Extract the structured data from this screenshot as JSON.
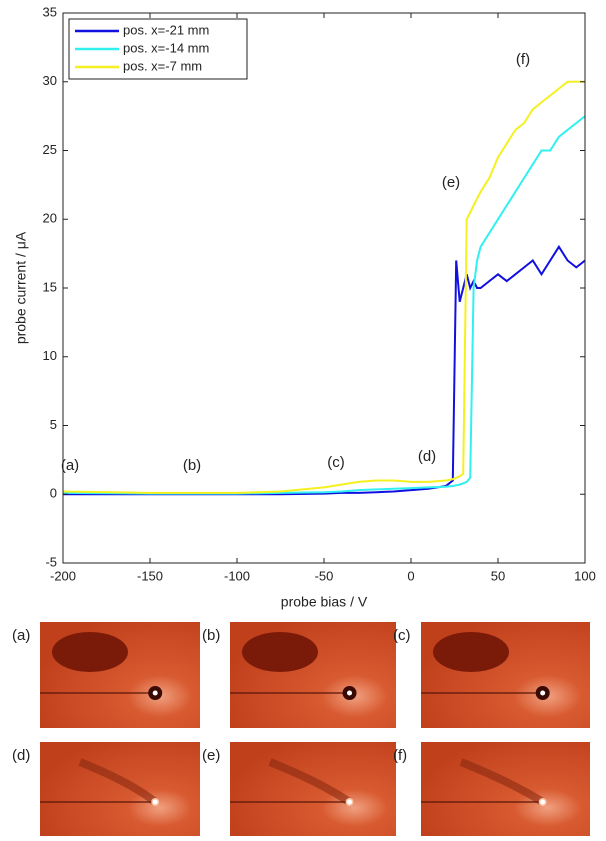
{
  "chart_data": {
    "type": "line",
    "xlabel": "probe bias / V",
    "ylabel": "probe current / μA",
    "x": [
      -200,
      -150,
      -100,
      -75,
      -50,
      -40,
      -30,
      -20,
      -10,
      0,
      10,
      20,
      24,
      26,
      28,
      30,
      32,
      34,
      36,
      38,
      40,
      45,
      50,
      55,
      60,
      65,
      70,
      75,
      80,
      85,
      90,
      95,
      100
    ],
    "series": [
      {
        "name": "pos. x=-21 mm",
        "color": "#1010e0",
        "values": [
          0,
          0,
          0,
          0,
          0.05,
          0.1,
          0.1,
          0.15,
          0.2,
          0.3,
          0.4,
          0.6,
          1,
          17,
          14,
          15,
          16,
          15,
          15.5,
          15,
          15,
          15.5,
          16,
          15.5,
          16,
          16.5,
          17,
          16,
          17,
          18,
          17,
          16.5,
          17
        ]
      },
      {
        "name": "pos. x=-14 mm",
        "color": "#30f0f0",
        "values": [
          0.1,
          0.05,
          0.05,
          0.1,
          0.15,
          0.2,
          0.3,
          0.35,
          0.4,
          0.45,
          0.5,
          0.55,
          0.6,
          0.65,
          0.7,
          0.8,
          0.9,
          1.2,
          15,
          17,
          18,
          19,
          20,
          21,
          22,
          23,
          24,
          25,
          25,
          26,
          26.5,
          27,
          27.5
        ]
      },
      {
        "name": "pos. x=-7 mm",
        "color": "#f5f020",
        "values": [
          0.2,
          0.1,
          0.1,
          0.2,
          0.5,
          0.7,
          0.9,
          1.0,
          1.0,
          0.9,
          0.9,
          1.0,
          1.1,
          1.2,
          1.3,
          1.5,
          20,
          20.5,
          21,
          21.5,
          22,
          23,
          24.5,
          25.5,
          26.5,
          27,
          28,
          28.5,
          29,
          29.5,
          30,
          30,
          30
        ]
      }
    ],
    "xlim": [
      -200,
      100
    ],
    "xticks": [
      -200,
      -150,
      -100,
      -50,
      0,
      50,
      100
    ],
    "ylim": [
      -5,
      35
    ],
    "yticks": [
      -5,
      0,
      5,
      10,
      15,
      20,
      25,
      30,
      35
    ],
    "grid": false,
    "legend": "upper left",
    "annotations": [
      "(a)",
      "(b)",
      "(c)",
      "(d)",
      "(e)",
      "(f)"
    ]
  },
  "image_panels": {
    "labels": [
      "(a)",
      "(b)",
      "(c)",
      "(d)",
      "(e)",
      "(f)"
    ]
  }
}
